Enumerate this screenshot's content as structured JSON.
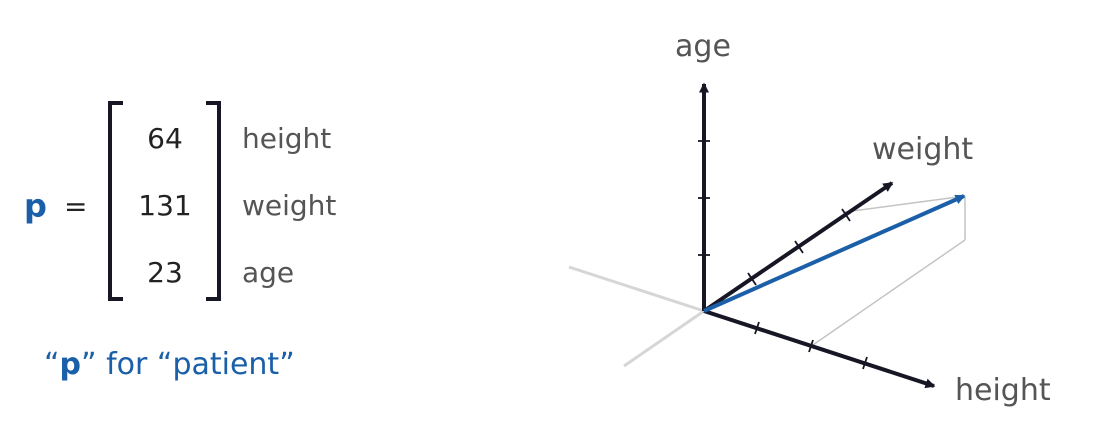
{
  "vector": {
    "symbol": "p",
    "equals": "=",
    "entries": [
      {
        "value": "64",
        "label": "height"
      },
      {
        "value": "131",
        "label": "weight"
      },
      {
        "value": "23",
        "label": "age"
      }
    ],
    "caption": {
      "open_quote": "“",
      "symbol": "p",
      "rest": "” for “patient”"
    }
  },
  "axes": {
    "age": "age",
    "weight": "weight",
    "height": "height"
  },
  "colors": {
    "accent": "#1a5fa8",
    "axis": "#161625",
    "label": "#555555",
    "value": "#222222",
    "ghost_axis": "#d6d6d6",
    "projection": "#c4c4c4"
  }
}
